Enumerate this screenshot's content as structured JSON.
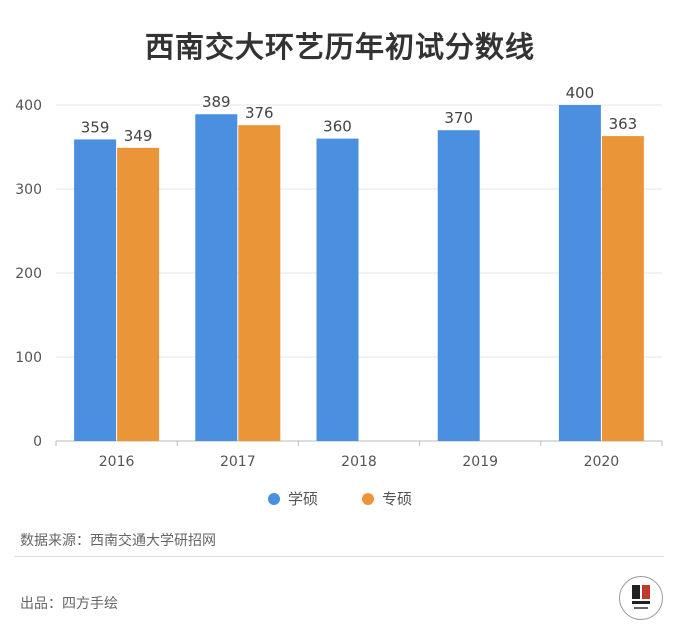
{
  "chart_data": {
    "type": "bar",
    "title": "西南交大环艺历年初试分数线",
    "categories": [
      "2016",
      "2017",
      "2018",
      "2019",
      "2020"
    ],
    "series": [
      {
        "name": "学硕",
        "color": "#4A8FE0",
        "values": [
          359,
          389,
          360,
          370,
          400
        ]
      },
      {
        "name": "专硕",
        "color": "#EA9638",
        "values": [
          349,
          376,
          null,
          null,
          363
        ]
      }
    ],
    "yticks": [
      "0",
      "100",
      "200",
      "300",
      "400"
    ],
    "ylim": [
      0,
      400
    ],
    "grid": true,
    "legend_position": "bottom"
  },
  "footer": {
    "source": "数据来源：西南交通大学研招网",
    "credit": "出品：四方手绘"
  },
  "logo_icon": "sifang-logo-icon"
}
